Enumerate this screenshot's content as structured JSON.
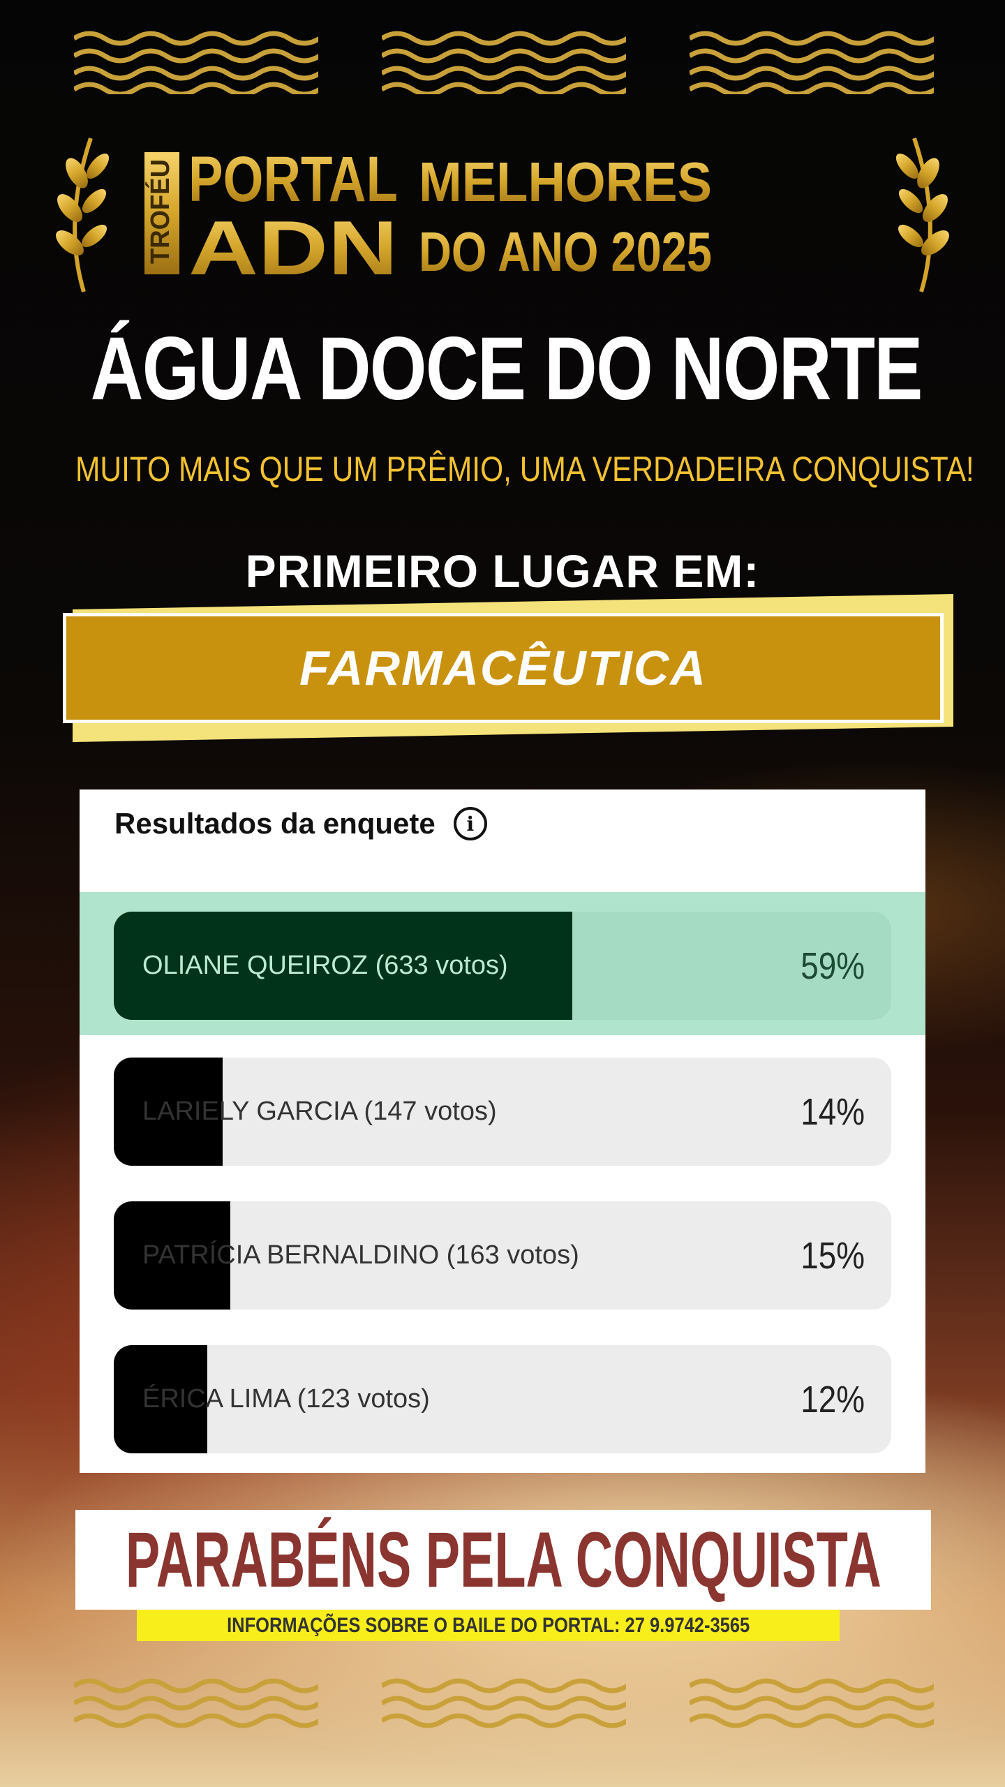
{
  "logo": {
    "trofeu": "TROFÉU",
    "portal": "PORTAL",
    "adn": "ADN",
    "melhores": "MELHORES",
    "do_ano": "DO ANO 2025"
  },
  "title": "ÁGUA DOCE DO NORTE",
  "subtitle": "MUITO MAIS QUE UM PRÊMIO, UMA VERDADEIRA CONQUISTA!",
  "first_place_label": "PRIMEIRO LUGAR EM:",
  "category": "FARMACÊUTICA",
  "poll": {
    "header": "Resultados da enquete",
    "info_icon": "info-icon",
    "options": [
      {
        "label": "OLIANE QUEIROZ (633 votos)",
        "percent_label": "59%",
        "percent": 59,
        "winner": true
      },
      {
        "label": "LARIELY GARCIA (147 votos)",
        "percent_label": "14%",
        "percent": 14
      },
      {
        "label": "PATRÍCIA BERNALDINO (163 votos)",
        "percent_label": "15%",
        "percent": 15
      },
      {
        "label": "ÉRICA LIMA (123 votos)",
        "percent_label": "12%",
        "percent": 12
      }
    ]
  },
  "congrats": "PARABÉNS PELA CONQUISTA",
  "info_strip": "INFORMAÇÕES SOBRE O BAILE DO PORTAL: 27 9.9742-3565",
  "colors": {
    "gold": "#d4a52a",
    "banner": "#c9920e",
    "winner_fill": "#01321a",
    "winner_bg": "#a6dbc3",
    "congrats": "#8b3530",
    "strip": "#f7ee1c"
  }
}
